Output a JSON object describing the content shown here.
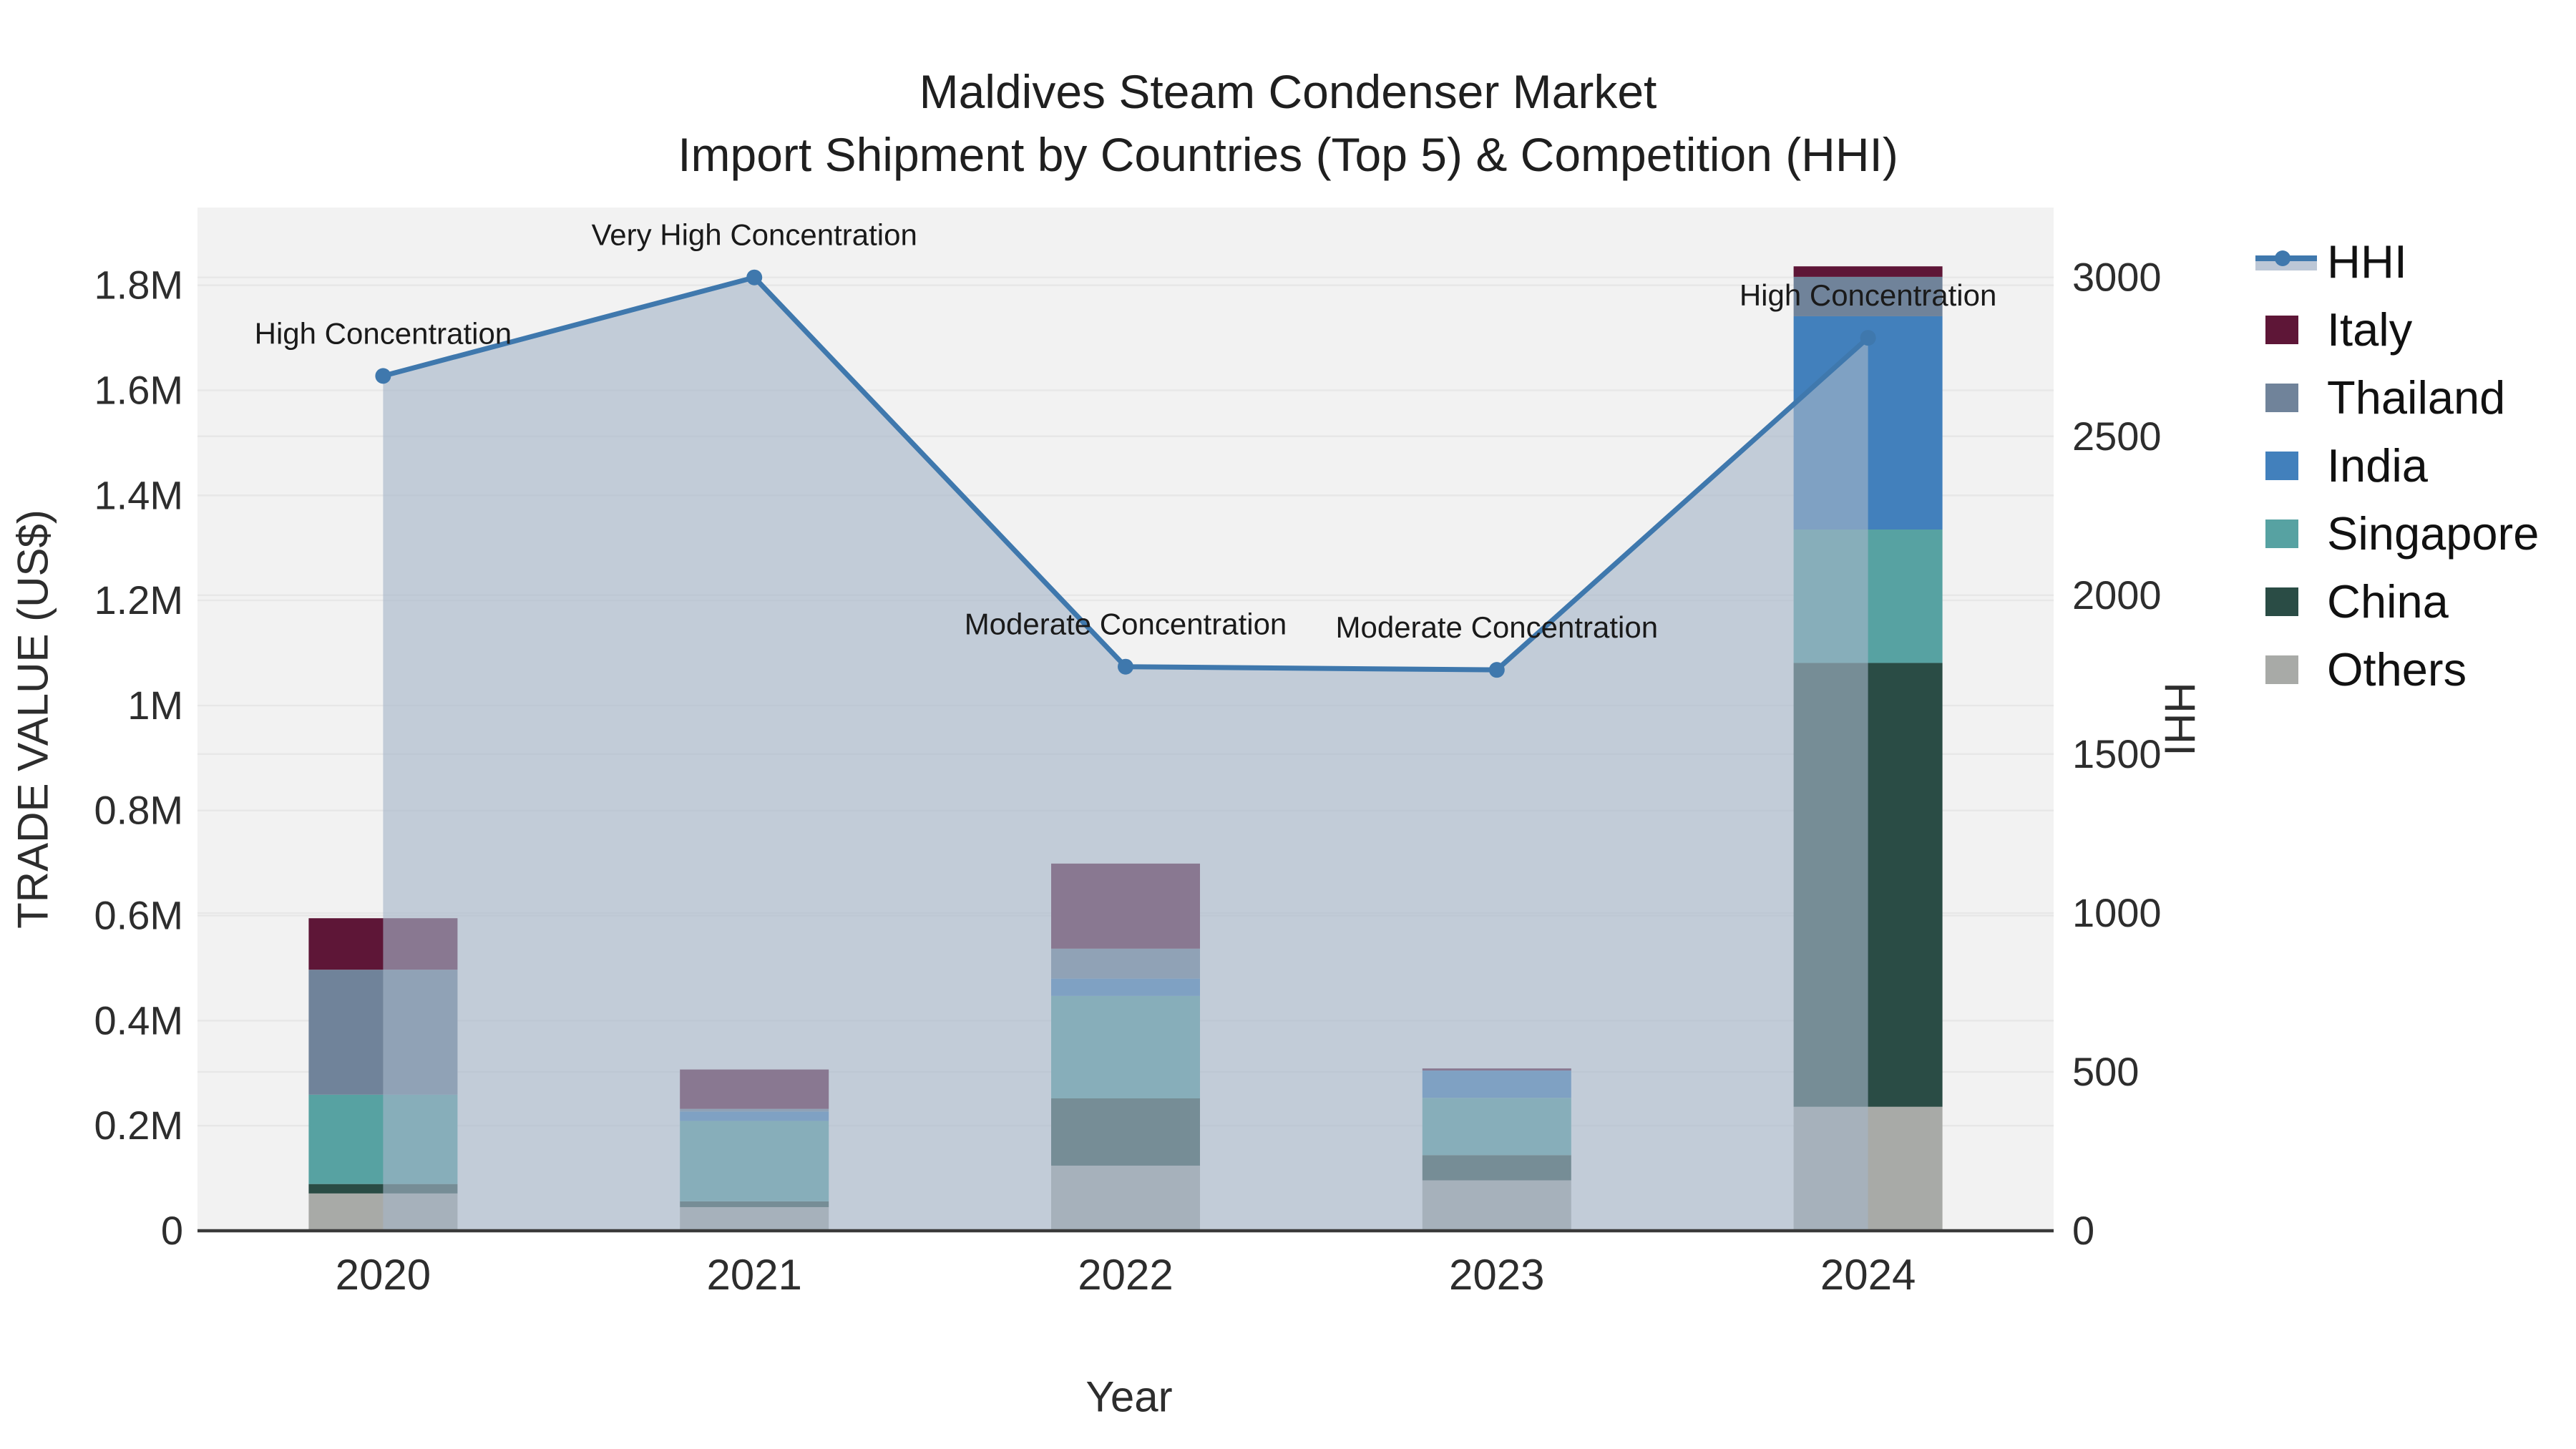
{
  "title": {
    "line1": "Maldives Steam Condenser Market",
    "line2": "Import Shipment by Countries (Top 5) & Competition (HHI)"
  },
  "chart_data": {
    "type": "bar",
    "subtype": "stacked-bars-with-hhi-line-and-area",
    "title": "Maldives Steam Condenser Market",
    "subtitle": "Import Shipment by Countries (Top 5) & Competition (HHI)",
    "categories": [
      "2020",
      "2021",
      "2022",
      "2023",
      "2024"
    ],
    "series": [
      {
        "name": "Others",
        "color": "#a8aaa7",
        "values": [
          71000,
          45000,
          124000,
          96000,
          236000
        ]
      },
      {
        "name": "China",
        "color": "#2a4c45",
        "values": [
          18000,
          11000,
          128000,
          48000,
          845000
        ]
      },
      {
        "name": "Singapore",
        "color": "#57a2a2",
        "values": [
          170000,
          153000,
          195000,
          109000,
          254000
        ]
      },
      {
        "name": "India",
        "color": "#4280bc",
        "values": [
          0,
          18000,
          33000,
          52000,
          406000
        ]
      },
      {
        "name": "Thailand",
        "color": "#70839a",
        "values": [
          238000,
          5000,
          57000,
          0,
          75000
        ]
      },
      {
        "name": "Italy",
        "color": "#5e1637",
        "values": [
          98000,
          75000,
          162000,
          4000,
          20000
        ]
      }
    ],
    "stack_order_note": "series listed bottom-to-top of stack",
    "hhi_line": {
      "name": "HHI",
      "color": "#3f78ad",
      "area_fill": "rgba(165,180,200,0.62)",
      "values": [
        2690,
        3000,
        1775,
        1765,
        2810
      ]
    },
    "annotations": [
      {
        "category": "2020",
        "text": "High Concentration"
      },
      {
        "category": "2021",
        "text": "Very High Concentration"
      },
      {
        "category": "2022",
        "text": "Moderate Concentration"
      },
      {
        "category": "2023",
        "text": "Moderate Concentration"
      },
      {
        "category": "2024",
        "text": "High Concentration"
      }
    ],
    "x_axis": {
      "title": "Year"
    },
    "y_left": {
      "title": "TRADE VALUE (US$)",
      "tick_labels": [
        "0",
        "0.2M",
        "0.4M",
        "0.6M",
        "0.8M",
        "1M",
        "1.2M",
        "1.4M",
        "1.6M",
        "1.8M"
      ],
      "tick_values": [
        0,
        200000,
        400000,
        600000,
        800000,
        1000000,
        1200000,
        1400000,
        1600000,
        1800000
      ],
      "axis_max": 1948000
    },
    "y_right": {
      "title": "HHI",
      "tick_labels": [
        "0",
        "500",
        "1000",
        "1500",
        "2000",
        "2500",
        "3000"
      ],
      "tick_values": [
        0,
        500,
        1000,
        1500,
        2000,
        2500,
        3000
      ],
      "axis_max": 3220
    },
    "grid": true,
    "legend_position": "right",
    "colors": {
      "plot_background": "#f2f2f2",
      "grid_line": "#e7e7e7",
      "axis_line": "#3a3a3a",
      "text": "#2d2d2d",
      "annotation_text": "#1a1a1a"
    }
  },
  "legend": {
    "items": [
      {
        "label": "HHI",
        "type": "line",
        "color": "#3f78ad",
        "band": "rgba(165,180,200,0.75)"
      },
      {
        "label": "Italy",
        "type": "swatch",
        "color": "#5e1637"
      },
      {
        "label": "Thailand",
        "type": "swatch",
        "color": "#70839a"
      },
      {
        "label": "India",
        "type": "swatch",
        "color": "#4280bc"
      },
      {
        "label": "Singapore",
        "type": "swatch",
        "color": "#57a2a2"
      },
      {
        "label": "China",
        "type": "swatch",
        "color": "#2a4c45"
      },
      {
        "label": "Others",
        "type": "swatch",
        "color": "#a8aaa7"
      }
    ]
  }
}
